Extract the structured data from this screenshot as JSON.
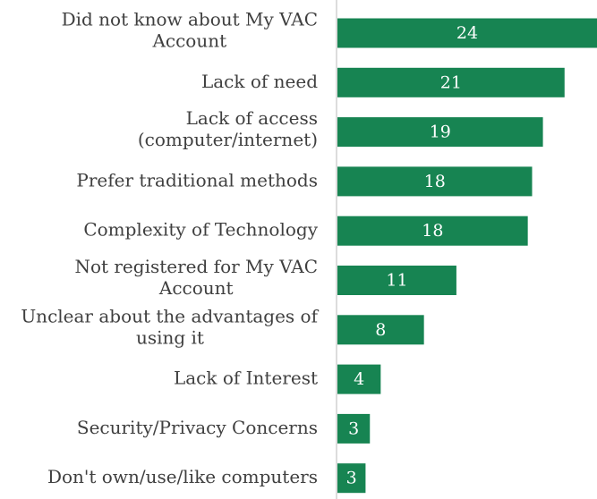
{
  "chart_data": {
    "type": "bar",
    "orientation": "horizontal",
    "title": "",
    "xlabel": "",
    "ylabel": "",
    "categories": [
      [
        "Did not know about My VAC",
        "Account"
      ],
      [
        "Lack of need"
      ],
      [
        "Lack of access",
        "(computer/internet)"
      ],
      [
        "Prefer traditional methods"
      ],
      [
        "Complexity of Technology"
      ],
      [
        "Not registered for My VAC",
        "Account"
      ],
      [
        "Unclear about the advantages of",
        "using it"
      ],
      [
        "Lack of Interest"
      ],
      [
        "Security/Privacy Concerns"
      ],
      [
        "Don't own/use/like computers"
      ]
    ],
    "values": [
      24,
      21,
      19,
      18,
      18,
      11,
      8,
      4,
      3,
      3
    ],
    "data_labels": [
      "24",
      "21",
      "19",
      "18",
      "18",
      "11",
      "8",
      "4",
      "3",
      "3"
    ],
    "bar_lengths": [
      24,
      21,
      19,
      18,
      17.6,
      11,
      8,
      4,
      3,
      2.6
    ],
    "xlim": [
      0,
      24
    ],
    "grid": false,
    "legend": "none",
    "colors": {
      "bar": "#178452",
      "label_text": "#3f3f3f",
      "value_text": "#ffffff",
      "axis_line": "#d0d0d0"
    }
  }
}
